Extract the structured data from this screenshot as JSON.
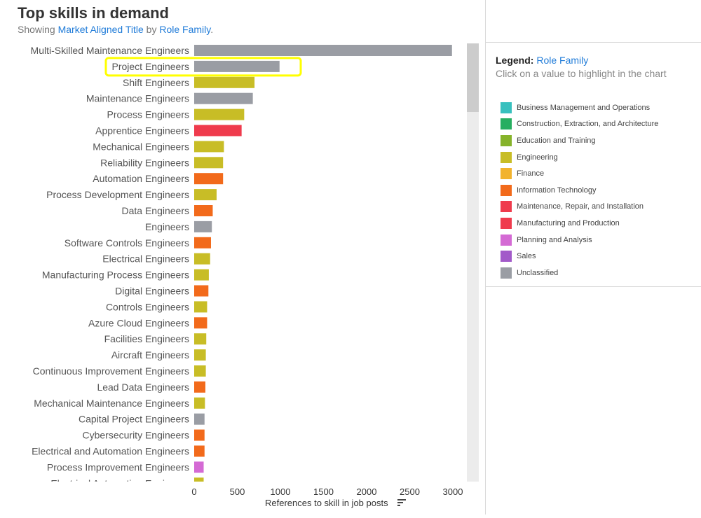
{
  "header": {
    "title": "Top skills in demand",
    "subtitle_prefix": "Showing",
    "subtitle_link1": "Market Aligned Title",
    "subtitle_mid": "by",
    "subtitle_link2": "Role Family",
    "subtitle_end": "."
  },
  "legend": {
    "title_prefix": "Legend:",
    "title_link": "Role Family",
    "hint": "Click on a value to highlight in the chart",
    "items": [
      {
        "label": "Business Management and Operations",
        "color": "#38c0be"
      },
      {
        "label": "Construction, Extraction, and Architecture",
        "color": "#27ae60"
      },
      {
        "label": "Education and Training",
        "color": "#86b32a"
      },
      {
        "label": "Engineering",
        "color": "#c8bd26"
      },
      {
        "label": "Finance",
        "color": "#f2b32e"
      },
      {
        "label": "Information Technology",
        "color": "#f26a1b"
      },
      {
        "label": "Maintenance, Repair, and Installation",
        "color": "#ef3b4d"
      },
      {
        "label": "Manufacturing and Production",
        "color": "#ef3b4d"
      },
      {
        "label": "Planning and Analysis",
        "color": "#d46ad4"
      },
      {
        "label": "Sales",
        "color": "#a25ac9"
      },
      {
        "label": "Unclassified",
        "color": "#9a9da4"
      }
    ]
  },
  "chart_data": {
    "type": "bar",
    "orientation": "horizontal",
    "title": "Top skills in demand",
    "xlabel": "References to skill in job posts",
    "xlim": [
      0,
      3000
    ],
    "xticks": [
      0,
      500,
      1000,
      1500,
      2000,
      2500,
      3000
    ],
    "highlighted": "Project Engineers",
    "bars": [
      {
        "label": "Multi-Skilled Maintenance Engineers",
        "value": 2990,
        "family": "Unclassified"
      },
      {
        "label": "Project Engineers",
        "value": 990,
        "family": "Unclassified"
      },
      {
        "label": "Shift Engineers",
        "value": 700,
        "family": "Engineering"
      },
      {
        "label": "Maintenance Engineers",
        "value": 680,
        "family": "Unclassified"
      },
      {
        "label": "Process Engineers",
        "value": 580,
        "family": "Engineering"
      },
      {
        "label": "Apprentice Engineers",
        "value": 550,
        "family": "Manufacturing and Production"
      },
      {
        "label": "Mechanical Engineers",
        "value": 345,
        "family": "Engineering"
      },
      {
        "label": "Reliability Engineers",
        "value": 335,
        "family": "Engineering"
      },
      {
        "label": "Automation Engineers",
        "value": 335,
        "family": "Information Technology"
      },
      {
        "label": "Process Development Engineers",
        "value": 260,
        "family": "Engineering"
      },
      {
        "label": "Data Engineers",
        "value": 215,
        "family": "Information Technology"
      },
      {
        "label": "Engineers",
        "value": 205,
        "family": "Unclassified"
      },
      {
        "label": "Software Controls Engineers",
        "value": 195,
        "family": "Information Technology"
      },
      {
        "label": "Electrical Engineers",
        "value": 185,
        "family": "Engineering"
      },
      {
        "label": "Manufacturing Process Engineers",
        "value": 170,
        "family": "Engineering"
      },
      {
        "label": "Digital Engineers",
        "value": 165,
        "family": "Information Technology"
      },
      {
        "label": "Controls Engineers",
        "value": 150,
        "family": "Engineering"
      },
      {
        "label": "Azure Cloud Engineers",
        "value": 150,
        "family": "Information Technology"
      },
      {
        "label": "Facilities Engineers",
        "value": 140,
        "family": "Engineering"
      },
      {
        "label": "Aircraft Engineers",
        "value": 135,
        "family": "Engineering"
      },
      {
        "label": "Continuous Improvement Engineers",
        "value": 135,
        "family": "Engineering"
      },
      {
        "label": "Lead Data Engineers",
        "value": 130,
        "family": "Information Technology"
      },
      {
        "label": "Mechanical Maintenance Engineers",
        "value": 125,
        "family": "Engineering"
      },
      {
        "label": "Capital Project Engineers",
        "value": 120,
        "family": "Unclassified"
      },
      {
        "label": "Cybersecurity Engineers",
        "value": 120,
        "family": "Information Technology"
      },
      {
        "label": "Electrical and Automation Engineers",
        "value": 120,
        "family": "Information Technology"
      },
      {
        "label": "Process Improvement Engineers",
        "value": 110,
        "family": "Planning and Analysis"
      },
      {
        "label": "Electrical Automation Engineers",
        "value": 110,
        "family": "Engineering"
      }
    ]
  },
  "colors": {
    "Unclassified": "#9a9da4",
    "Engineering": "#c8bd26",
    "Manufacturing and Production": "#ef3b4d",
    "Information Technology": "#f26a1b",
    "Planning and Analysis": "#d46ad4",
    "highlight": "#ffff00",
    "link": "#1f7bd8"
  }
}
